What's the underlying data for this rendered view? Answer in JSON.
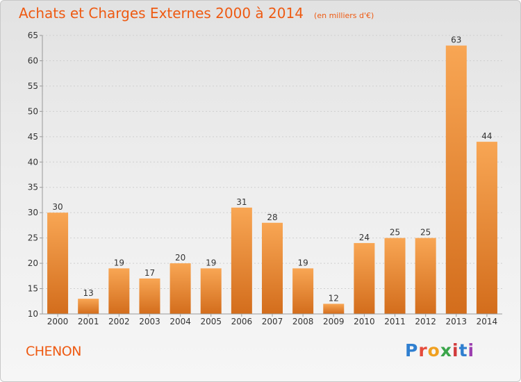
{
  "title": "Achats et Charges Externes 2000 à 2014",
  "unit": "(en milliers d'€)",
  "commune": "CHENON",
  "logo": {
    "text": "Proxiti",
    "colors": [
      "#2f7fd0",
      "#e54b3c",
      "#f0a020",
      "#3aa54a",
      "#d13b3b",
      "#2f7fd0",
      "#9c3fb0"
    ]
  },
  "colors": {
    "bar_light": "#f8a654",
    "bar_dark": "#d36d1c",
    "accent": "#ee5a12"
  },
  "chart_data": {
    "type": "bar",
    "title": "Achats et Charges Externes 2000 à 2014",
    "subtitle": "(en milliers d'€)",
    "xlabel": "",
    "ylabel": "",
    "categories": [
      "2000",
      "2001",
      "2002",
      "2003",
      "2004",
      "2005",
      "2006",
      "2007",
      "2008",
      "2009",
      "2010",
      "2011",
      "2012",
      "2013",
      "2014"
    ],
    "values": [
      30,
      13,
      19,
      17,
      20,
      19,
      31,
      28,
      19,
      12,
      24,
      25,
      25,
      63,
      44
    ],
    "ylim": [
      10,
      65
    ],
    "yticks": [
      10,
      15,
      20,
      25,
      30,
      35,
      40,
      45,
      50,
      55,
      60,
      65
    ],
    "grid": true,
    "legend": "none"
  }
}
